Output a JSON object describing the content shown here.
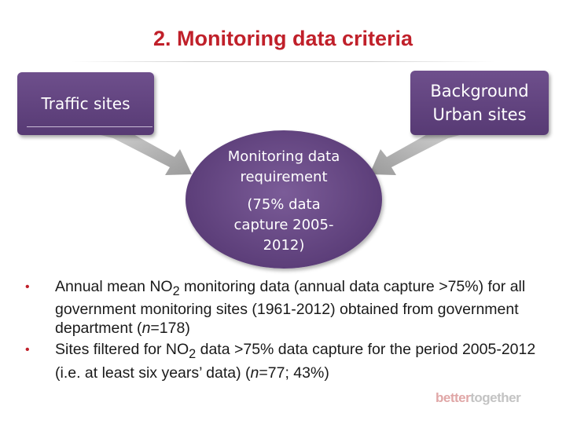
{
  "slide": {
    "title": "2. Monitoring data criteria"
  },
  "diagram": {
    "left_box": "Traffic sites",
    "right_box_line1": "Background",
    "right_box_line2": "Urban sites",
    "circle_line1": "Monitoring data",
    "circle_line2": "requirement",
    "circle_line3": "(75% data",
    "circle_line4": "capture 2005-",
    "circle_line5": "2012)"
  },
  "bullets": [
    {
      "p1": "Annual mean NO",
      "sub": "2",
      "p2": " monitoring data (annual data capture >75%) for all government monitoring sites (1961-2012) obtained from government department (",
      "n_label": "n",
      "p3": "=178)"
    },
    {
      "p1": "Sites filtered for NO",
      "sub": "2",
      "p2": " data >75% data capture for the period 2005-2012 (i.e. at least six years’ data) (",
      "n_label": "n",
      "p3": "=77; 43%)"
    }
  ],
  "brand": {
    "part1": "better",
    "part2": "together"
  },
  "colors": {
    "title": "#c0202a",
    "box": "#5f4380",
    "arrow": "#9e9e9e",
    "bullet": "#c0202a"
  }
}
